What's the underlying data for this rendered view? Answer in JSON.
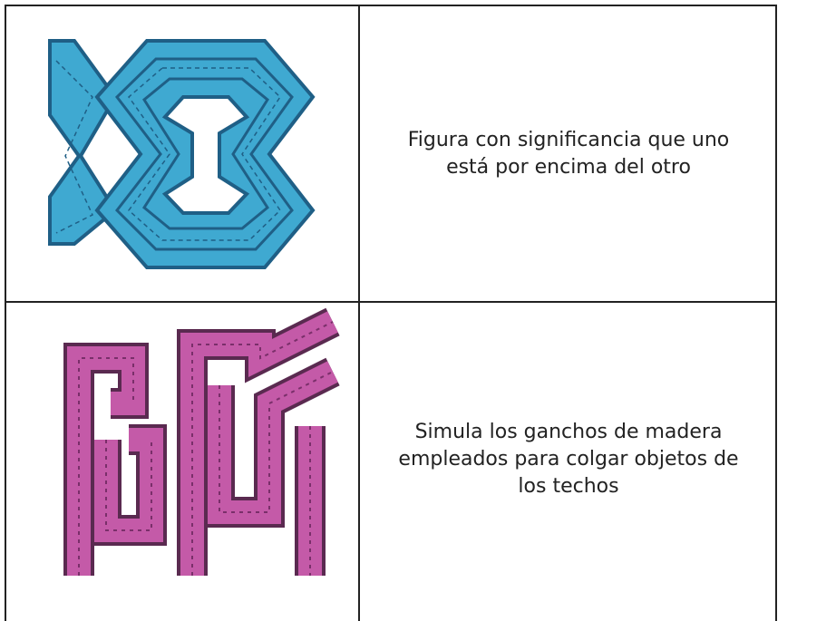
{
  "table": {
    "rows": [
      [
        "Figura con significancia que uno está por encima del otro"
      ],
      [
        "Simula los ganchos de madera empleados para colgar objetos de los techos"
      ]
    ]
  }
}
